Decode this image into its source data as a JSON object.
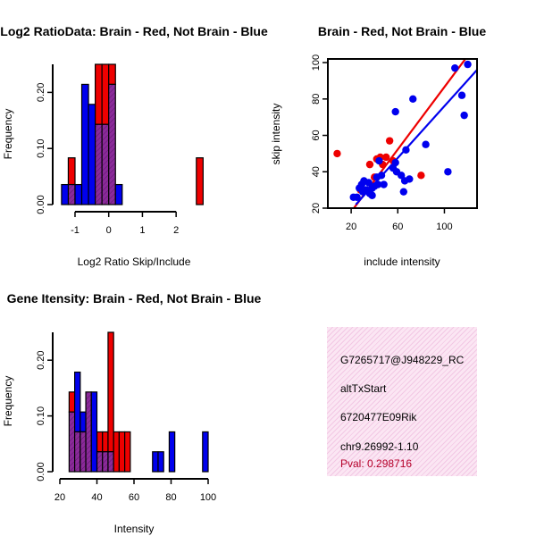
{
  "colors": {
    "red": "#ee0000",
    "blue": "#0000ee",
    "overlap": "#8b2a9a"
  },
  "chart_data": [
    {
      "type": "bar",
      "title": "Log2 RatioData: Brain - Red, Not Brain - Blue",
      "xlabel": "Log2 Ratio Skip/Include",
      "ylabel": "Frequency",
      "xlim": [
        -1.45,
        2.95
      ],
      "ylim": [
        0,
        0.25
      ],
      "xticks": [
        "-1",
        "0",
        "1",
        "2"
      ],
      "yticks": [
        "0.00",
        "0.10",
        "0.20"
      ],
      "series": [
        {
          "name": "Brain",
          "color": "red",
          "bins": [
            [
              -1.2,
              -1.0,
              0.0833
            ],
            [
              -1.0,
              -0.8,
              0.0
            ],
            [
              -0.8,
              -0.6,
              0.0
            ],
            [
              -0.6,
              -0.4,
              0.0
            ],
            [
              -0.4,
              -0.2,
              0.25
            ],
            [
              -0.2,
              0.0,
              0.25
            ],
            [
              0.0,
              0.2,
              0.25
            ],
            [
              2.6,
              2.8,
              0.0833
            ]
          ]
        },
        {
          "name": "Not Brain",
          "color": "blue",
          "bins": [
            [
              -1.4,
              -1.2,
              0.0357
            ],
            [
              -1.2,
              -1.0,
              0.0357
            ],
            [
              -1.0,
              -0.8,
              0.0357
            ],
            [
              -0.8,
              -0.6,
              0.2143
            ],
            [
              -0.6,
              -0.4,
              0.1786
            ],
            [
              -0.4,
              -0.2,
              0.1429
            ],
            [
              -0.2,
              0.0,
              0.1429
            ],
            [
              0.0,
              0.2,
              0.2143
            ],
            [
              0.2,
              0.4,
              0.0357
            ]
          ]
        }
      ]
    },
    {
      "type": "scatter",
      "title": "Brain - Red, Not Brain - Blue",
      "xlabel": "include intensity",
      "ylabel": "skip intensity",
      "xlim": [
        0,
        128
      ],
      "ylim": [
        20,
        102
      ],
      "xticks": [
        20,
        60,
        100
      ],
      "yticks": [
        20,
        40,
        60,
        80,
        100
      ],
      "series": [
        {
          "name": "Brain",
          "color": "red",
          "points": [
            [
              8,
              50
            ],
            [
              28,
              30
            ],
            [
              36,
              44
            ],
            [
              40,
              37
            ],
            [
              42,
              47
            ],
            [
              45,
              48
            ],
            [
              47,
              44
            ],
            [
              50,
              48
            ],
            [
              53,
              57
            ],
            [
              56,
              46
            ],
            [
              80,
              38
            ]
          ]
        },
        {
          "name": "Not Brain",
          "color": "blue",
          "points": [
            [
              22,
              26
            ],
            [
              25,
              26
            ],
            [
              27,
              31
            ],
            [
              29,
              33
            ],
            [
              30,
              29
            ],
            [
              31,
              35
            ],
            [
              33,
              30
            ],
            [
              35,
              34
            ],
            [
              36,
              28
            ],
            [
              38,
              27
            ],
            [
              38,
              31
            ],
            [
              40,
              32
            ],
            [
              42,
              37
            ],
            [
              43,
              33
            ],
            [
              44,
              46
            ],
            [
              46,
              38
            ],
            [
              48,
              33
            ],
            [
              56,
              42
            ],
            [
              58,
              45
            ],
            [
              59,
              40
            ],
            [
              63,
              38
            ],
            [
              65,
              29
            ],
            [
              66,
              35
            ],
            [
              67,
              52
            ],
            [
              70,
              36
            ],
            [
              73,
              80
            ],
            [
              84,
              55
            ],
            [
              103,
              40
            ],
            [
              109,
              97
            ],
            [
              115,
              82
            ],
            [
              117,
              71
            ],
            [
              120,
              99
            ],
            [
              58,
              73
            ]
          ]
        }
      ],
      "fit_lines": [
        {
          "color": "red",
          "from": [
            20,
            18
          ],
          "to": [
            118,
            102
          ]
        },
        {
          "color": "blue",
          "from": [
            24,
            22
          ],
          "to": [
            128,
            96
          ]
        }
      ]
    },
    {
      "type": "bar",
      "title": "Gene Itensity: Brain - Red, Not Brain - Blue",
      "xlabel": "Intensity",
      "ylabel": "Frequency",
      "xlim": [
        20,
        100
      ],
      "ylim": [
        0,
        0.25
      ],
      "xticks": [
        "20",
        "40",
        "60",
        "80",
        "100"
      ],
      "yticks": [
        "0.00",
        "0.10",
        "0.20"
      ],
      "series": [
        {
          "name": "Brain",
          "color": "red",
          "bins": [
            [
              25,
              28,
              0.1429
            ],
            [
              28,
              31,
              0.0714
            ],
            [
              31,
              34,
              0.0714
            ],
            [
              34,
              37,
              0.1429
            ],
            [
              40,
              43,
              0.0714
            ],
            [
              43,
              46,
              0.0714
            ],
            [
              46,
              49,
              0.25
            ],
            [
              49,
              52,
              0.0714
            ],
            [
              52,
              55,
              0.0714
            ],
            [
              55,
              58,
              0.0714
            ]
          ]
        },
        {
          "name": "Not Brain",
          "color": "blue",
          "bins": [
            [
              25,
              28,
              0.1071
            ],
            [
              28,
              31,
              0.1786
            ],
            [
              31,
              34,
              0.1071
            ],
            [
              34,
              37,
              0.1429
            ],
            [
              37,
              40,
              0.1429
            ],
            [
              40,
              43,
              0.0357
            ],
            [
              43,
              46,
              0.0357
            ],
            [
              46,
              49,
              0.0357
            ],
            [
              70,
              73,
              0.0357
            ],
            [
              73,
              76,
              0.0357
            ],
            [
              79,
              82,
              0.0714
            ],
            [
              97,
              100,
              0.0714
            ]
          ]
        }
      ]
    }
  ],
  "info": {
    "probe_id": "G7265717@J948229_RC",
    "event_type": "altTxStart",
    "gene": "6720477E09Rik",
    "location": "chr9.26992-1.10",
    "pval": "Pval: 0.298716"
  }
}
